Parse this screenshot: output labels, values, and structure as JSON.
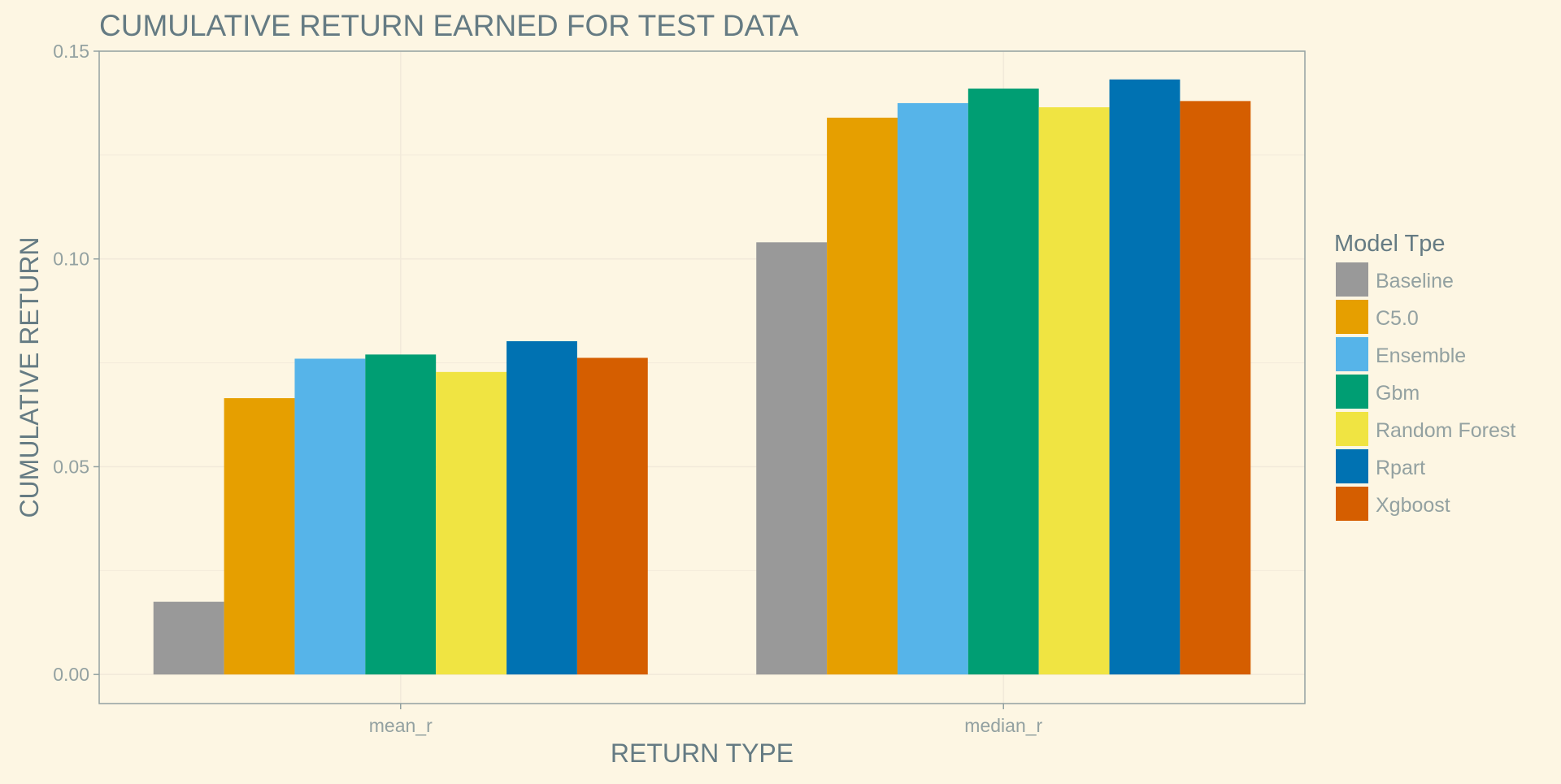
{
  "chart_data": {
    "type": "bar",
    "title": "CUMULATIVE RETURN EARNED FOR TEST DATA",
    "xlabel": "RETURN TYPE",
    "ylabel": "CUMULATIVE RETURN",
    "categories": [
      "mean_r",
      "median_r"
    ],
    "ylim": [
      -0.007,
      0.15
    ],
    "yticks": [
      0.0,
      0.05,
      0.1,
      0.15
    ],
    "ytick_labels": [
      "0.00",
      "0.05",
      "0.10",
      "0.15"
    ],
    "grid": true,
    "legend": {
      "title": "Model Tpe",
      "position": "right"
    },
    "series": [
      {
        "name": "Baseline",
        "color": "#999999",
        "values": [
          0.0175,
          0.104
        ]
      },
      {
        "name": "C5.0",
        "color": "#e69f00",
        "values": [
          0.0665,
          0.134
        ]
      },
      {
        "name": "Ensemble",
        "color": "#56b4e9",
        "values": [
          0.076,
          0.1375
        ]
      },
      {
        "name": "Gbm",
        "color": "#009e73",
        "values": [
          0.077,
          0.141
        ]
      },
      {
        "name": "Random Forest",
        "color": "#f0e442",
        "values": [
          0.0728,
          0.1365
        ]
      },
      {
        "name": "Rpart",
        "color": "#0072b2",
        "values": [
          0.0802,
          0.1432
        ]
      },
      {
        "name": "Xgboost",
        "color": "#d55e00",
        "values": [
          0.0762,
          0.138
        ]
      }
    ]
  },
  "colors": {
    "background": "#fdf6e3",
    "grid": "#f2eada",
    "panel_border": "#93a1a1",
    "text_primary": "#657b83",
    "text_secondary": "#93a1a1"
  }
}
